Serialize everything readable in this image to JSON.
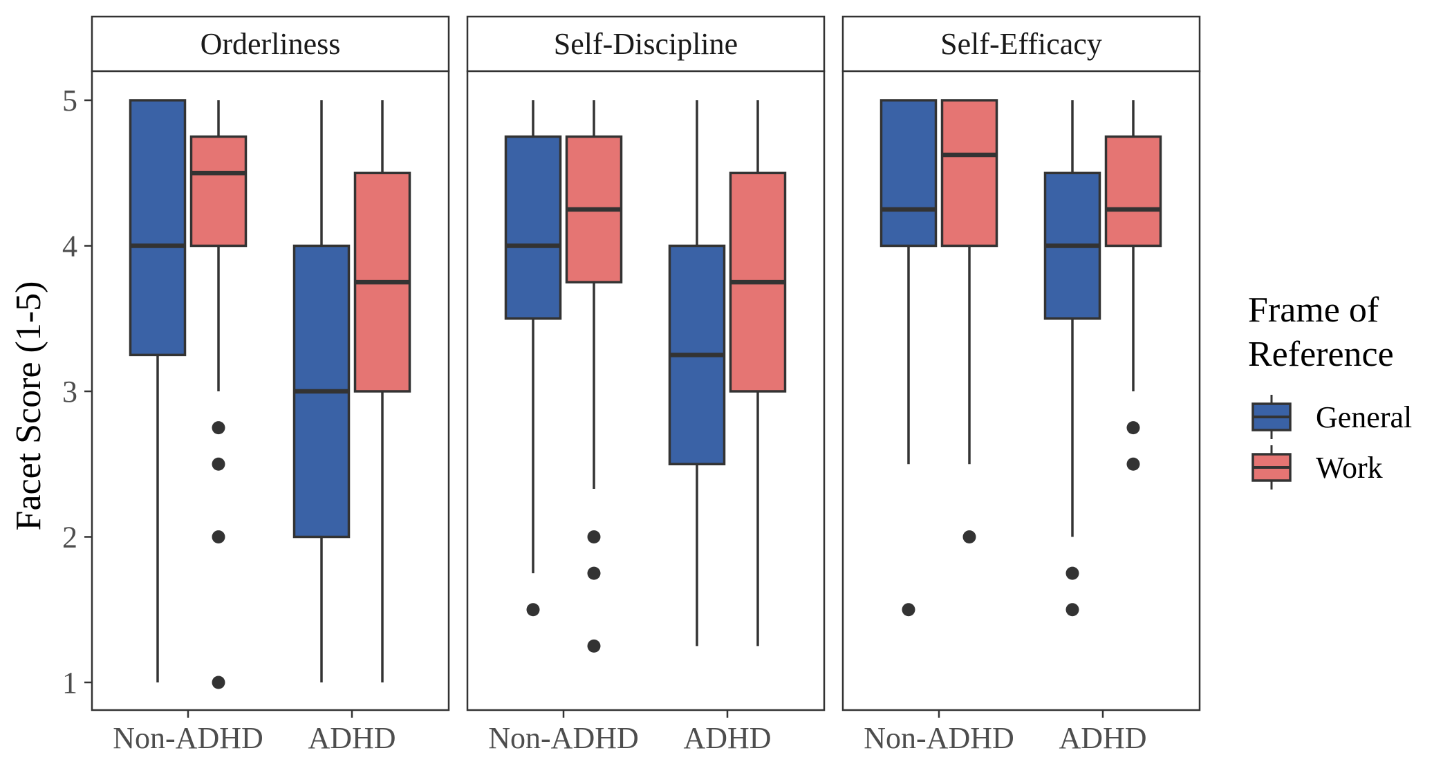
{
  "chart_data": {
    "type": "boxplot",
    "ylabel": "Facet Score (1-5)",
    "xlabel": "",
    "ylim": [
      0.8,
      5.2
    ],
    "yticks": [
      1,
      2,
      3,
      4,
      5
    ],
    "categories": [
      "Non-ADHD",
      "ADHD"
    ],
    "grid": false,
    "legend": {
      "title_lines": [
        "Frame of",
        "Reference"
      ],
      "position": "right",
      "items": [
        {
          "name": "General",
          "color": "#3a62a6"
        },
        {
          "name": "Work",
          "color": "#e57573"
        }
      ]
    },
    "facets": [
      {
        "title": "Orderliness",
        "groups": [
          {
            "category": "Non-ADHD",
            "boxes": [
              {
                "series": "General",
                "lower_whisker": 1,
                "q1": 3.25,
                "median": 4,
                "q3": 5,
                "upper_whisker": 5,
                "outliers": []
              },
              {
                "series": "Work",
                "lower_whisker": 3,
                "q1": 4,
                "median": 4.5,
                "q3": 4.75,
                "upper_whisker": 5,
                "outliers": [
                  2.75,
                  2.5,
                  2,
                  1
                ]
              }
            ]
          },
          {
            "category": "ADHD",
            "boxes": [
              {
                "series": "General",
                "lower_whisker": 1,
                "q1": 2,
                "median": 3,
                "q3": 4,
                "upper_whisker": 5,
                "outliers": []
              },
              {
                "series": "Work",
                "lower_whisker": 1,
                "q1": 3,
                "median": 3.75,
                "q3": 4.5,
                "upper_whisker": 5,
                "outliers": []
              }
            ]
          }
        ]
      },
      {
        "title": "Self-Discipline",
        "groups": [
          {
            "category": "Non-ADHD",
            "boxes": [
              {
                "series": "General",
                "lower_whisker": 1.75,
                "q1": 3.5,
                "median": 4,
                "q3": 4.75,
                "upper_whisker": 5,
                "outliers": [
                  1.5
                ]
              },
              {
                "series": "Work",
                "lower_whisker": 2.33,
                "q1": 3.75,
                "median": 4.25,
                "q3": 4.75,
                "upper_whisker": 5,
                "outliers": [
                  2,
                  1.75,
                  1.25
                ]
              }
            ]
          },
          {
            "category": "ADHD",
            "boxes": [
              {
                "series": "General",
                "lower_whisker": 1.25,
                "q1": 2.5,
                "median": 3.25,
                "q3": 4,
                "upper_whisker": 5,
                "outliers": []
              },
              {
                "series": "Work",
                "lower_whisker": 1.25,
                "q1": 3,
                "median": 3.75,
                "q3": 4.5,
                "upper_whisker": 5,
                "outliers": []
              }
            ]
          }
        ]
      },
      {
        "title": "Self-Efficacy",
        "groups": [
          {
            "category": "Non-ADHD",
            "boxes": [
              {
                "series": "General",
                "lower_whisker": 2.5,
                "q1": 4,
                "median": 4.25,
                "q3": 5,
                "upper_whisker": 5,
                "outliers": [
                  1.5
                ]
              },
              {
                "series": "Work",
                "lower_whisker": 2.5,
                "q1": 4,
                "median": 4.625,
                "q3": 5,
                "upper_whisker": 5,
                "outliers": [
                  2
                ]
              }
            ]
          },
          {
            "category": "ADHD",
            "boxes": [
              {
                "series": "General",
                "lower_whisker": 2,
                "q1": 3.5,
                "median": 4,
                "q3": 4.5,
                "upper_whisker": 5,
                "outliers": [
                  1.75,
                  1.5
                ]
              },
              {
                "series": "Work",
                "lower_whisker": 3,
                "q1": 4,
                "median": 4.25,
                "q3": 4.75,
                "upper_whisker": 5,
                "outliers": [
                  2.75,
                  2.5
                ]
              }
            ]
          }
        ]
      }
    ]
  }
}
